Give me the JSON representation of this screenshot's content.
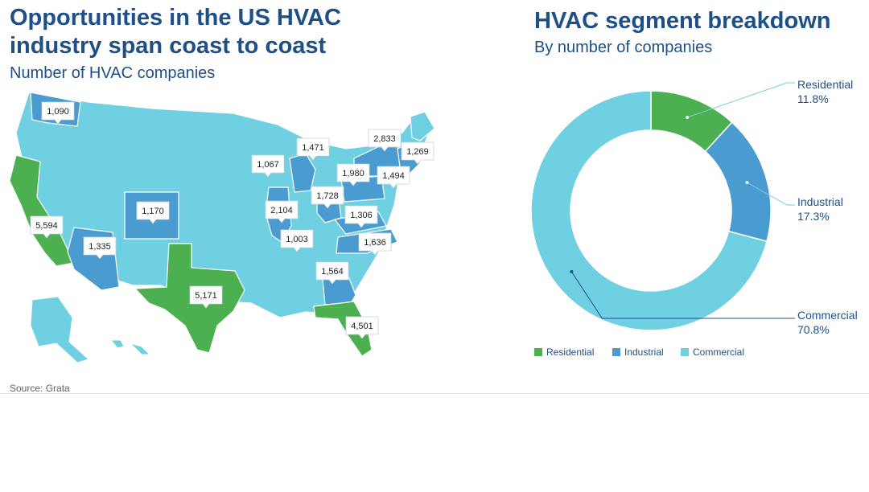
{
  "left": {
    "title": "Opportunities in the US HVAC industry span coast to coast",
    "subtitle": "Number of HVAC companies",
    "source": "Source: Grata"
  },
  "right": {
    "title": "HVAC segment breakdown",
    "subtitle": "By number of companies"
  },
  "colors": {
    "residential": "#4caf50",
    "industrial": "#4a9bcf",
    "commercial": "#6fd0e2",
    "title": "#1e4f86"
  },
  "chart_data": [
    {
      "type": "map",
      "title": "Number of HVAC companies",
      "labels": [
        {
          "value": "1,090"
        },
        {
          "value": "5,594"
        },
        {
          "value": "1,335"
        },
        {
          "value": "1,170"
        },
        {
          "value": "5,171"
        },
        {
          "value": "1,067"
        },
        {
          "value": "1,471"
        },
        {
          "value": "2,104"
        },
        {
          "value": "1,003"
        },
        {
          "value": "1,728"
        },
        {
          "value": "1,980"
        },
        {
          "value": "2,833"
        },
        {
          "value": "1,269"
        },
        {
          "value": "1,494"
        },
        {
          "value": "1,306"
        },
        {
          "value": "1,636"
        },
        {
          "value": "1,564"
        },
        {
          "value": "4,501"
        }
      ]
    },
    {
      "type": "pie",
      "title": "HVAC segment breakdown",
      "subtitle": "By number of companies",
      "categories": [
        "Residential",
        "Industrial",
        "Commercial"
      ],
      "values": [
        11.8,
        17.3,
        70.8
      ],
      "value_labels": [
        "11.8%",
        "17.3%",
        "70.8%"
      ],
      "colors": [
        "#4caf50",
        "#4a9bcf",
        "#6fd0e2"
      ],
      "legend": "bottom"
    }
  ]
}
